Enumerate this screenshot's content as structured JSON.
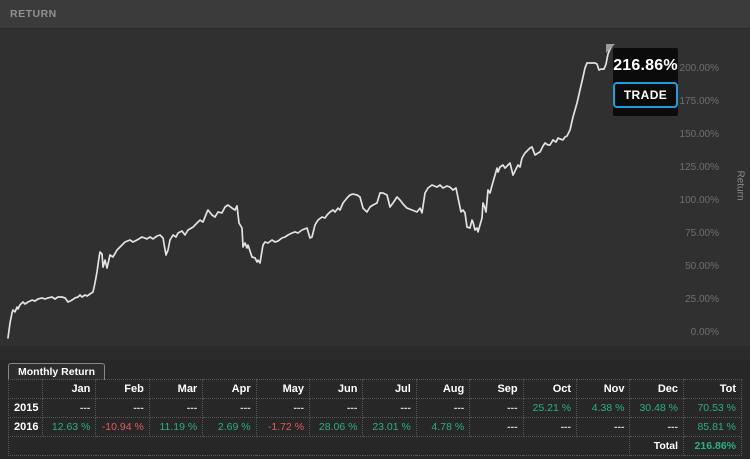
{
  "header": {
    "title": "RETURN"
  },
  "tooltip": {
    "value": "216.86%",
    "button_label": "TRADE",
    "accent_color": "#1e9cdc"
  },
  "chart_data": {
    "type": "line",
    "title": "RETURN",
    "xlabel": "",
    "ylabel": "Return",
    "x_axis_note": "time, unlabeled",
    "ylim": [
      -10,
      230
    ],
    "yticks": [
      200,
      175,
      150,
      125,
      100,
      75,
      50,
      25,
      0
    ],
    "ytick_labels": [
      "200.00%",
      "175.00%",
      "150.00%",
      "125.00%",
      "100.00%",
      "75.00%",
      "50.00%",
      "25.00%",
      "0.00%"
    ],
    "grid": false,
    "legend": "none",
    "line_color": "#e2e2e2",
    "final_value_pct": 216.86,
    "points": [
      [
        8,
        -4.5
      ],
      [
        10,
        6.8
      ],
      [
        12,
        14.4
      ],
      [
        13,
        16.7
      ],
      [
        15,
        15.2
      ],
      [
        17,
        18.9
      ],
      [
        18,
        17.4
      ],
      [
        20,
        20.5
      ],
      [
        23,
        22.7
      ],
      [
        25,
        21.2
      ],
      [
        28,
        22.7
      ],
      [
        32,
        24.2
      ],
      [
        35,
        23.5
      ],
      [
        38,
        25
      ],
      [
        42,
        25.8
      ],
      [
        45,
        25
      ],
      [
        48,
        25.8
      ],
      [
        52,
        26.5
      ],
      [
        55,
        25
      ],
      [
        58,
        26.5
      ],
      [
        62,
        26.5
      ],
      [
        65,
        25.8
      ],
      [
        68,
        22.7
      ],
      [
        72,
        24.2
      ],
      [
        75,
        25.8
      ],
      [
        78,
        26.5
      ],
      [
        80,
        28
      ],
      [
        82,
        26.5
      ],
      [
        85,
        28
      ],
      [
        87,
        27.3
      ],
      [
        90,
        28.8
      ],
      [
        93,
        30.3
      ],
      [
        95,
        37.1
      ],
      [
        97,
        45.5
      ],
      [
        99,
        56.1
      ],
      [
        100,
        60.6
      ],
      [
        102,
        59.1
      ],
      [
        103,
        49.2
      ],
      [
        105,
        54.5
      ],
      [
        107,
        48.5
      ],
      [
        110,
        58.3
      ],
      [
        113,
        56.8
      ],
      [
        117,
        62.1
      ],
      [
        120,
        64.4
      ],
      [
        125,
        68.2
      ],
      [
        130,
        69.7
      ],
      [
        133,
        68.2
      ],
      [
        137,
        69.7
      ],
      [
        142,
        72
      ],
      [
        147,
        70.5
      ],
      [
        150,
        72
      ],
      [
        153,
        70.5
      ],
      [
        157,
        72.7
      ],
      [
        160,
        73.5
      ],
      [
        163,
        71.2
      ],
      [
        166,
        58.3
      ],
      [
        168,
        62.1
      ],
      [
        170,
        69.7
      ],
      [
        173,
        73.5
      ],
      [
        176,
        72
      ],
      [
        178,
        75
      ],
      [
        182,
        76.5
      ],
      [
        185,
        73.5
      ],
      [
        188,
        77.3
      ],
      [
        193,
        79.5
      ],
      [
        197,
        82.6
      ],
      [
        200,
        84.8
      ],
      [
        203,
        83.3
      ],
      [
        207,
        90.9
      ],
      [
        208,
        92.4
      ],
      [
        212,
        88.6
      ],
      [
        215,
        87.1
      ],
      [
        218,
        90.9
      ],
      [
        222,
        90.2
      ],
      [
        225,
        94.7
      ],
      [
        228,
        96.2
      ],
      [
        232,
        93.9
      ],
      [
        235,
        92.4
      ],
      [
        237,
        95.5
      ],
      [
        239,
        82.6
      ],
      [
        242,
        78.8
      ],
      [
        243,
        64.4
      ],
      [
        245,
        67.4
      ],
      [
        247,
        63.6
      ],
      [
        248,
        65.9
      ],
      [
        252,
        56.8
      ],
      [
        255,
        56.1
      ],
      [
        257,
        53
      ],
      [
        258,
        54.5
      ],
      [
        260,
        52.3
      ],
      [
        263,
        65.9
      ],
      [
        265,
        68.2
      ],
      [
        268,
        67.4
      ],
      [
        272,
        69.7
      ],
      [
        275,
        68.2
      ],
      [
        278,
        68.9
      ],
      [
        282,
        71.2
      ],
      [
        285,
        72
      ],
      [
        288,
        73.5
      ],
      [
        292,
        75
      ],
      [
        295,
        75.8
      ],
      [
        298,
        75
      ],
      [
        302,
        77.3
      ],
      [
        307,
        78.8
      ],
      [
        310,
        71.2
      ],
      [
        312,
        72
      ],
      [
        315,
        81.1
      ],
      [
        318,
        84.8
      ],
      [
        322,
        87.1
      ],
      [
        325,
        86.4
      ],
      [
        327,
        88.6
      ],
      [
        330,
        90.9
      ],
      [
        333,
        92.4
      ],
      [
        335,
        90.9
      ],
      [
        338,
        93.9
      ],
      [
        340,
        92.4
      ],
      [
        343,
        97.7
      ],
      [
        347,
        101.5
      ],
      [
        350,
        103.8
      ],
      [
        353,
        104.5
      ],
      [
        357,
        103.8
      ],
      [
        360,
        102.3
      ],
      [
        363,
        93.9
      ],
      [
        367,
        90.9
      ],
      [
        370,
        94.7
      ],
      [
        373,
        96.2
      ],
      [
        377,
        97.7
      ],
      [
        380,
        105.3
      ],
      [
        383,
        105.3
      ],
      [
        387,
        103.8
      ],
      [
        390,
        94.7
      ],
      [
        393,
        97.7
      ],
      [
        397,
        102.3
      ],
      [
        400,
        100
      ],
      [
        403,
        97
      ],
      [
        407,
        93.9
      ],
      [
        412,
        92.4
      ],
      [
        417,
        90.9
      ],
      [
        420,
        93.9
      ],
      [
        422,
        90.2
      ],
      [
        425,
        105.3
      ],
      [
        428,
        109.1
      ],
      [
        432,
        111.4
      ],
      [
        437,
        109.8
      ],
      [
        440,
        111.4
      ],
      [
        443,
        109.1
      ],
      [
        447,
        110.6
      ],
      [
        450,
        109.8
      ],
      [
        453,
        107.6
      ],
      [
        456,
        109.1
      ],
      [
        459,
        98
      ],
      [
        461,
        91
      ],
      [
        463,
        92.4
      ],
      [
        465,
        90.2
      ],
      [
        467,
        79.5
      ],
      [
        470,
        78.8
      ],
      [
        472,
        84.8
      ],
      [
        473,
        83.3
      ],
      [
        475,
        77.3
      ],
      [
        477,
        78.8
      ],
      [
        478,
        75.8
      ],
      [
        482,
        86.4
      ],
      [
        483,
        97.7
      ],
      [
        485,
        93.9
      ],
      [
        486,
        90.9
      ],
      [
        488,
        107.6
      ],
      [
        490,
        105.3
      ],
      [
        493,
        113.6
      ],
      [
        497,
        124.2
      ],
      [
        498,
        121.2
      ],
      [
        500,
        125
      ],
      [
        503,
        126.5
      ],
      [
        505,
        124.2
      ],
      [
        510,
        128
      ],
      [
        513,
        118.9
      ],
      [
        516,
        123.5
      ],
      [
        518,
        126.5
      ],
      [
        520,
        125
      ],
      [
        522,
        131.8
      ],
      [
        525,
        135.6
      ],
      [
        528,
        137.9
      ],
      [
        530,
        139.4
      ],
      [
        532,
        140.2
      ],
      [
        535,
        134.1
      ],
      [
        538,
        135.6
      ],
      [
        540,
        136.4
      ],
      [
        543,
        140.9
      ],
      [
        545,
        143.2
      ],
      [
        548,
        141.7
      ],
      [
        550,
        141.7
      ],
      [
        553,
        145.5
      ],
      [
        556,
        143.9
      ],
      [
        558,
        147
      ],
      [
        560,
        146.2
      ],
      [
        563,
        145.5
      ],
      [
        565,
        147.7
      ],
      [
        567,
        148.5
      ],
      [
        570,
        153
      ],
      [
        573,
        162.9
      ],
      [
        577,
        173.5
      ],
      [
        580,
        183.3
      ],
      [
        583,
        193.2
      ],
      [
        585,
        200
      ],
      [
        587,
        203.8
      ],
      [
        590,
        203.8
      ],
      [
        593,
        203.8
      ],
      [
        595,
        203.8
      ],
      [
        597,
        203
      ],
      [
        599,
        198.5
      ],
      [
        601,
        199.2
      ],
      [
        604,
        199.2
      ],
      [
        606,
        203
      ],
      [
        608,
        210.6
      ],
      [
        610,
        214.4
      ],
      [
        612,
        216.9
      ]
    ]
  },
  "monthly_table": {
    "tab_label": "Monthly Return",
    "columns": [
      "",
      "Jan",
      "Feb",
      "Mar",
      "Apr",
      "May",
      "Jun",
      "Jul",
      "Aug",
      "Sep",
      "Oct",
      "Nov",
      "Dec",
      "Tot"
    ],
    "rows": [
      {
        "year": "2015",
        "values": [
          "---",
          "---",
          "---",
          "---",
          "---",
          "---",
          "---",
          "---",
          "---",
          "25.21 %",
          "4.38 %",
          "30.48 %",
          "70.53 %"
        ]
      },
      {
        "year": "2016",
        "values": [
          "12.63 %",
          "-10.94 %",
          "11.19 %",
          "2.69 %",
          "-1.72 %",
          "28.06 %",
          "23.01 %",
          "4.78 %",
          "---",
          "---",
          "---",
          "---",
          "85.81 %"
        ]
      }
    ],
    "total_label": "Total",
    "total_value": "216.86%",
    "colors": {
      "positive": "#2bb081",
      "negative": "#e05c5c",
      "dash": "#d2d2d2"
    }
  }
}
